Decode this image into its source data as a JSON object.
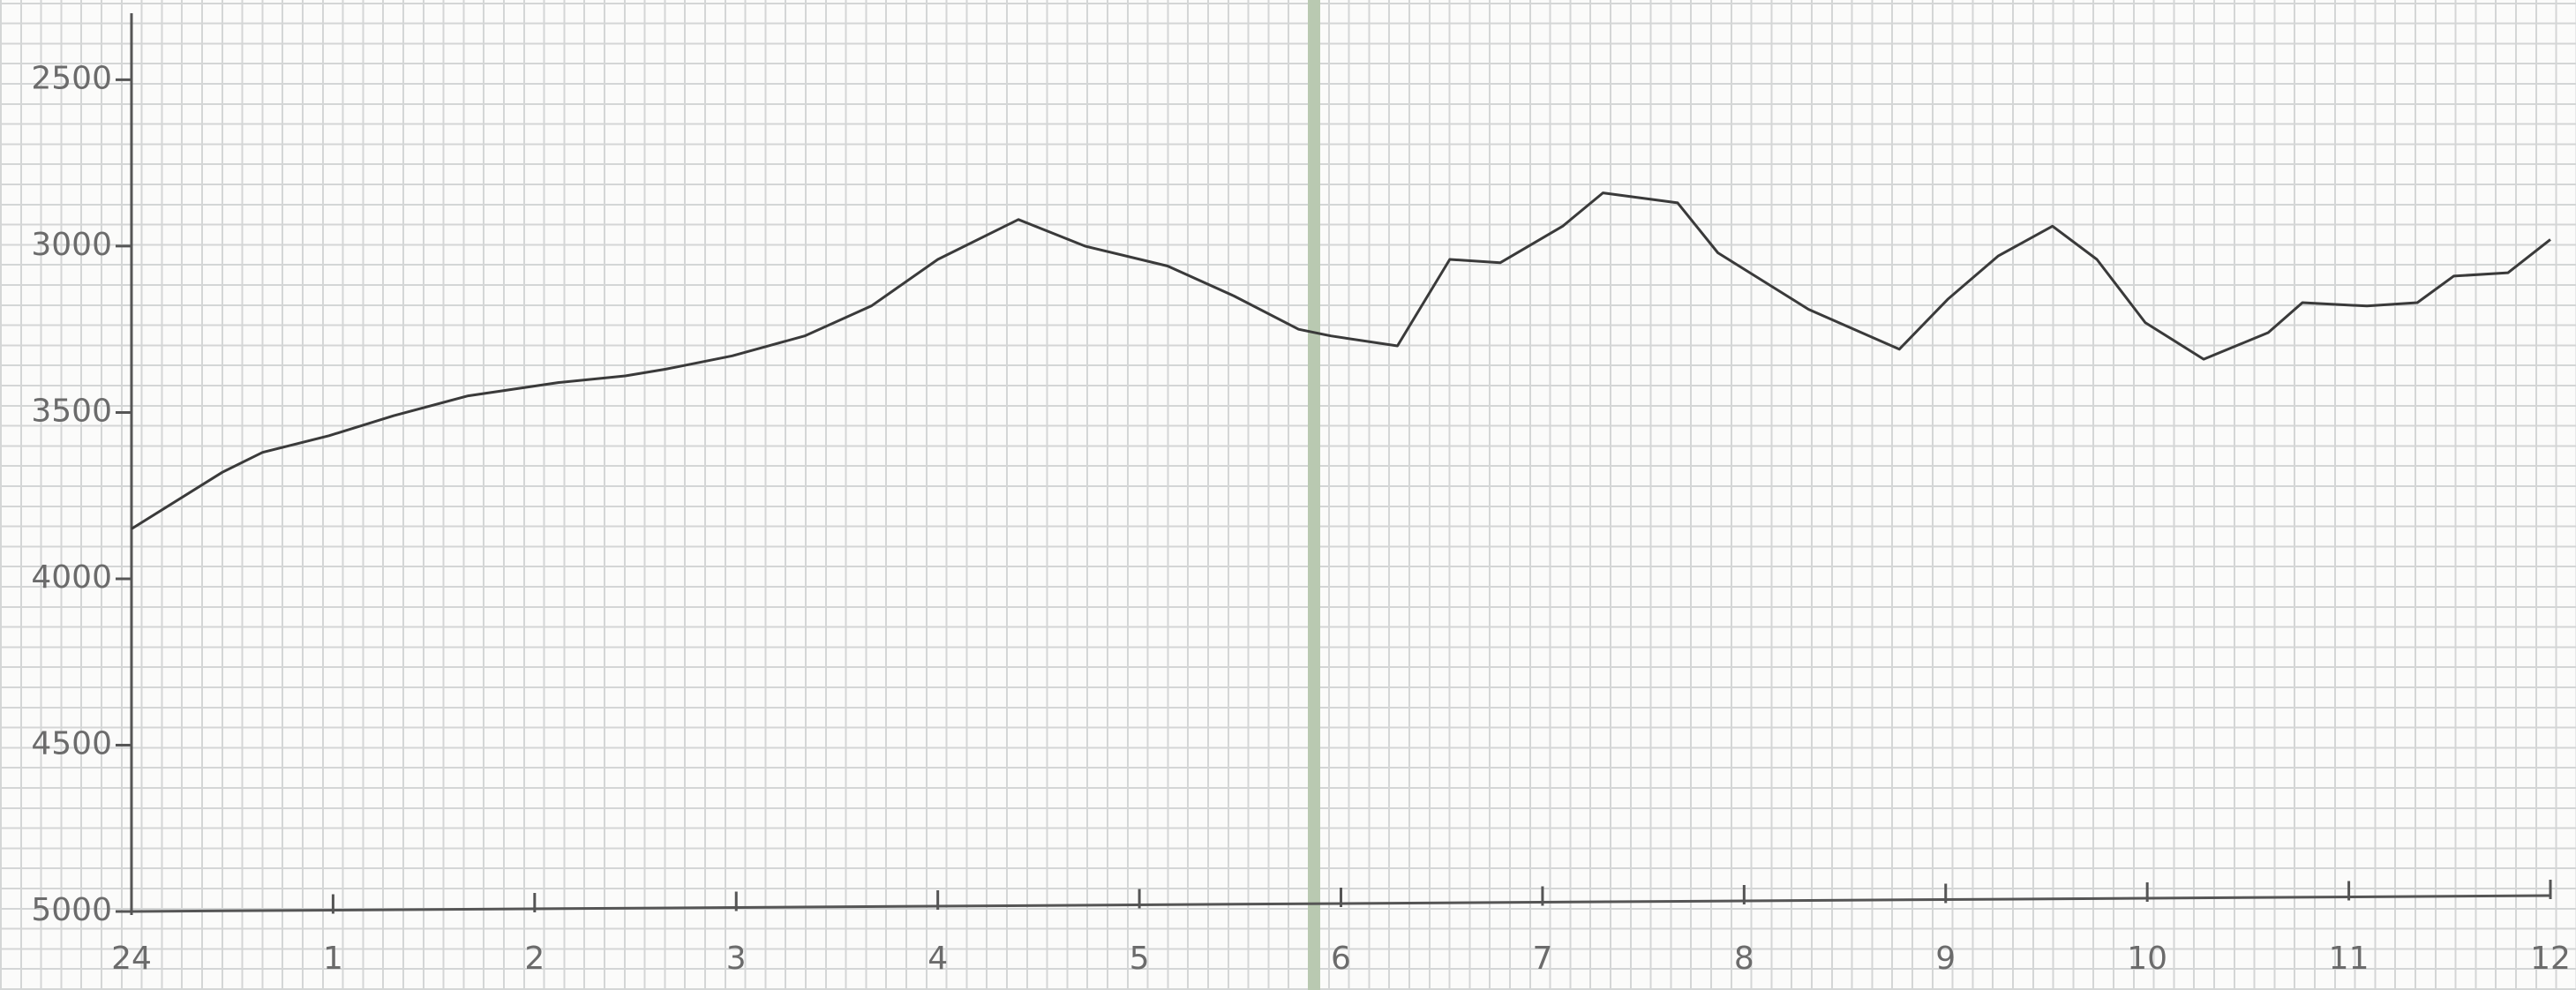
{
  "chart_data": {
    "type": "line",
    "x": [
      0,
      0.45,
      0.65,
      0.98,
      1.3,
      1.67,
      2.12,
      2.45,
      2.65,
      2.98,
      3.34,
      3.67,
      4.0,
      4.4,
      4.73,
      5.14,
      5.47,
      5.79,
      5.95,
      6.28,
      6.54,
      6.79,
      7.1,
      7.3,
      7.67,
      7.87,
      8.32,
      8.77,
      9.01,
      9.26,
      9.53,
      9.75,
      9.99,
      10.28,
      10.6,
      10.77,
      11.09,
      11.34,
      11.52,
      11.79,
      12.0
    ],
    "values": [
      3850,
      3680,
      3620,
      3570,
      3510,
      3450,
      3410,
      3390,
      3370,
      3330,
      3270,
      3180,
      3040,
      2920,
      3000,
      3060,
      3150,
      3250,
      3270,
      3300,
      3040,
      3050,
      2940,
      2840,
      2870,
      3020,
      3190,
      3310,
      3160,
      3030,
      2940,
      3040,
      3230,
      3340,
      3260,
      3170,
      3180,
      3170,
      3090,
      3080,
      2980
    ],
    "color": "#3a3a3a",
    "xlim": [
      0,
      12
    ],
    "xticks": [
      {
        "value": 0,
        "label": "24"
      },
      1,
      2,
      3,
      4,
      5,
      6,
      7,
      8,
      9,
      10,
      11,
      12
    ],
    "ylim": [
      5000,
      2300
    ],
    "yticks": [
      2500,
      3000,
      3500,
      4000,
      4500,
      5000
    ]
  }
}
